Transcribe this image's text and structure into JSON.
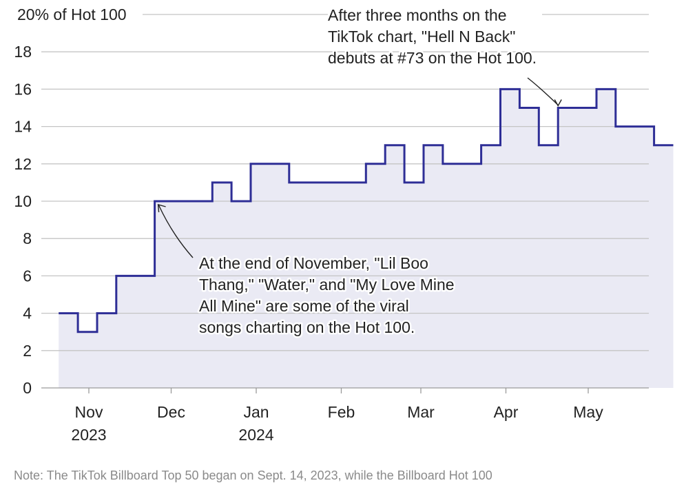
{
  "chart_data": {
    "type": "line",
    "style": "step",
    "ylabel": "% of Hot 100",
    "ylim": [
      0,
      20
    ],
    "y_ticks": [
      0,
      2,
      4,
      6,
      8,
      10,
      12,
      14,
      16,
      18,
      20
    ],
    "top_tick_label": "20% of Hot 100",
    "x_ticks": [
      {
        "date": "2023-11-01",
        "label": "Nov",
        "sub": "2023"
      },
      {
        "date": "2023-12-01",
        "label": "Dec",
        "sub": ""
      },
      {
        "date": "2024-01-01",
        "label": "Jan",
        "sub": "2024"
      },
      {
        "date": "2024-02-01",
        "label": "Feb",
        "sub": ""
      },
      {
        "date": "2024-03-01",
        "label": "Mar",
        "sub": ""
      },
      {
        "date": "2024-04-01",
        "label": "Apr",
        "sub": ""
      },
      {
        "date": "2024-05-01",
        "label": "May",
        "sub": ""
      }
    ],
    "series": [
      {
        "x": [
          "2023-10-21",
          "2023-10-28",
          "2023-11-04",
          "2023-11-11",
          "2023-11-18",
          "2023-11-25",
          "2023-12-02",
          "2023-12-09",
          "2023-12-16",
          "2023-12-23",
          "2023-12-30",
          "2024-01-06",
          "2024-01-13",
          "2024-01-20",
          "2024-01-27",
          "2024-02-03",
          "2024-02-10",
          "2024-02-17",
          "2024-02-24",
          "2024-03-02",
          "2024-03-09",
          "2024-03-16",
          "2024-03-23",
          "2024-03-30",
          "2024-04-06",
          "2024-04-13",
          "2024-04-20",
          "2024-04-27",
          "2024-05-04",
          "2024-05-11",
          "2024-05-18",
          "2024-05-25"
        ],
        "y": [
          4,
          3,
          4,
          6,
          6,
          10,
          10,
          10,
          11,
          10,
          12,
          12,
          11,
          11,
          11,
          11,
          12,
          13,
          11,
          13,
          12,
          12,
          13,
          16,
          15,
          13,
          15,
          15,
          16,
          14,
          14,
          13
        ],
        "color": "#2e2e96",
        "fill": "#eaeaf4"
      }
    ],
    "annotations": [
      {
        "lines": [
          "After three months on the",
          "TikTok chart, \"Hell N Back\"",
          "debuts at #73 on the Hot 100."
        ],
        "target_date": "2024-04-20",
        "target_value": 15
      },
      {
        "lines": [
          "At the end of November, \"Lil Boo",
          "Thang,\" \"Water,\" and \"My Love Mine",
          "All Mine\" are some of the viral",
          "songs charting on the Hot 100."
        ],
        "target_date": "2023-11-25",
        "target_value": 10
      }
    ],
    "note": "Note: The TikTok Billboard Top 50 began on Sept. 14, 2023, while the Billboard Hot 100",
    "grid": true,
    "legend": "none"
  }
}
